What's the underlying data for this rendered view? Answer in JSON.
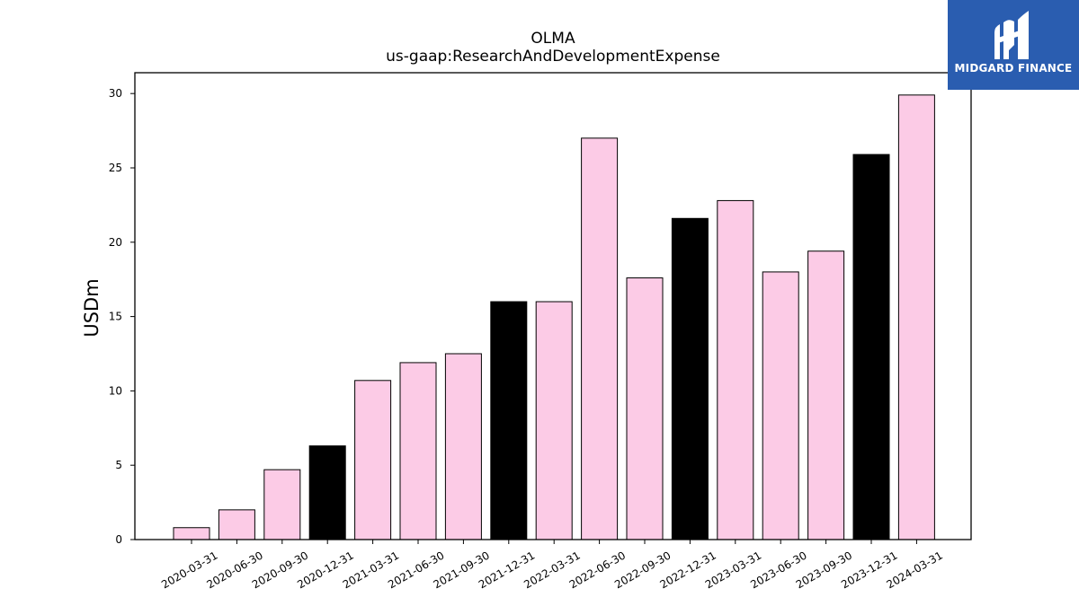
{
  "chart_data": {
    "type": "bar",
    "title": "OLMA",
    "subtitle": "us-gaap:ResearchAndDevelopmentExpense",
    "xlabel": "",
    "ylabel": "USDm",
    "ylim": [
      0,
      31.4
    ],
    "yticks": [
      "0",
      "5",
      "10",
      "15",
      "20",
      "25",
      "30"
    ],
    "categories": [
      "2020-03-31",
      "2020-06-30",
      "2020-09-30",
      "2020-12-31",
      "2021-03-31",
      "2021-06-30",
      "2021-09-30",
      "2021-12-31",
      "2022-03-31",
      "2022-06-30",
      "2022-09-30",
      "2022-12-31",
      "2023-03-31",
      "2023-06-30",
      "2023-09-30",
      "2023-12-31",
      "2024-03-31"
    ],
    "values": [
      0.8,
      2.0,
      4.7,
      6.3,
      10.7,
      11.9,
      12.5,
      16.0,
      16.0,
      27.0,
      17.6,
      21.6,
      22.8,
      18.0,
      19.4,
      25.9,
      29.9
    ],
    "bar_colors": [
      "#fccbe6",
      "#fccbe6",
      "#fccbe6",
      "#000000",
      "#fccbe6",
      "#fccbe6",
      "#fccbe6",
      "#000000",
      "#fccbe6",
      "#fccbe6",
      "#fccbe6",
      "#000000",
      "#fccbe6",
      "#fccbe6",
      "#fccbe6",
      "#000000",
      "#fccbe6"
    ],
    "grid": false
  },
  "logo": {
    "text": "MIDGARD FINANCE",
    "background": "#2a5db0",
    "icon": "midgard-logo-icon"
  }
}
